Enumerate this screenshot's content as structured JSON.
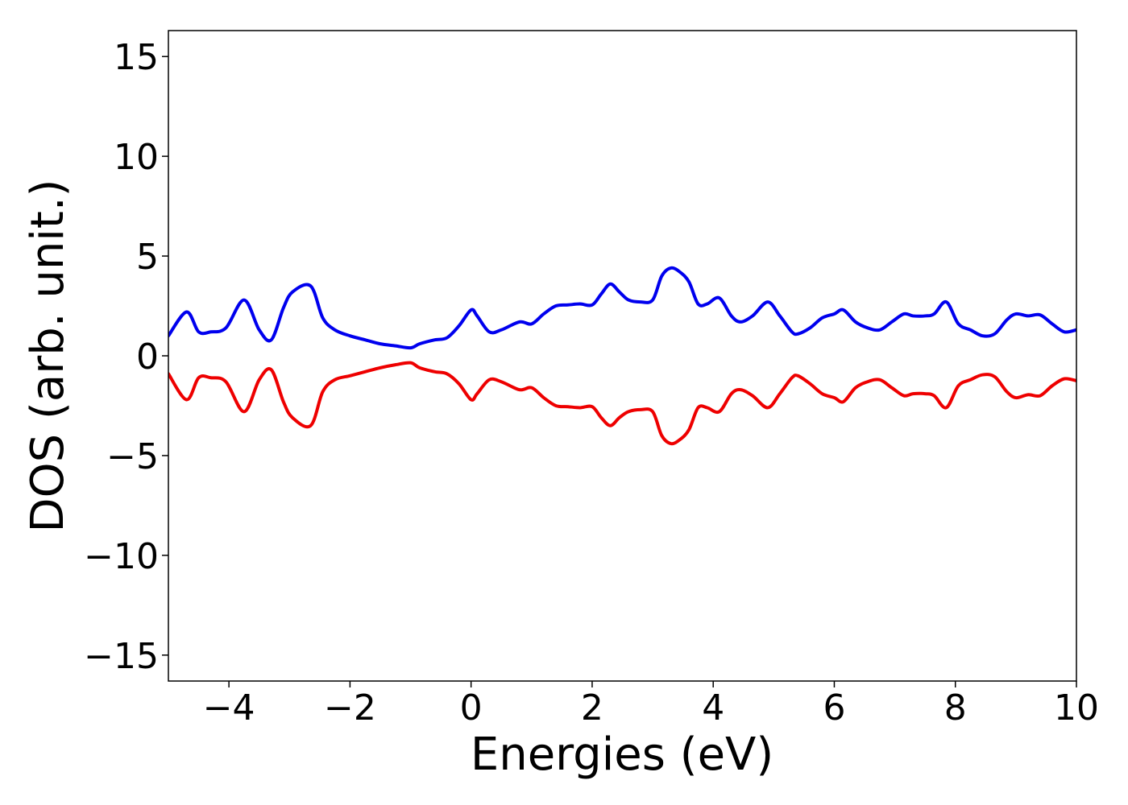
{
  "chart_data": {
    "type": "line",
    "title": "",
    "xlabel": "Energies (eV)",
    "ylabel": "DOS (arb. unit.)",
    "xlim": [
      -5,
      10
    ],
    "ylim": [
      -16.3,
      16.3
    ],
    "xticks": [
      -4,
      -2,
      0,
      2,
      4,
      6,
      8,
      10
    ],
    "xtick_labels": [
      "−4",
      "−2",
      "0",
      "2",
      "4",
      "6",
      "8",
      "10"
    ],
    "yticks": [
      -15,
      -10,
      -5,
      0,
      5,
      10,
      15
    ],
    "ytick_labels": [
      "−15",
      "−10",
      "−5",
      "0",
      "5",
      "10",
      "15"
    ],
    "grid": false,
    "legend": "none",
    "series": [
      {
        "color": "#0000ee",
        "x": [
          -5.0,
          -4.7,
          -4.5,
          -4.3,
          -4.05,
          -3.75,
          -3.5,
          -3.3,
          -3.1,
          -2.95,
          -2.65,
          -2.45,
          -2.25,
          -2.0,
          -1.75,
          -1.5,
          -1.25,
          -1.0,
          -0.85,
          -0.6,
          -0.4,
          -0.2,
          0.0,
          0.1,
          0.3,
          0.5,
          0.8,
          1.0,
          1.2,
          1.4,
          1.6,
          1.8,
          2.0,
          2.15,
          2.3,
          2.45,
          2.6,
          2.8,
          3.0,
          3.15,
          3.3,
          3.45,
          3.6,
          3.75,
          3.9,
          4.1,
          4.3,
          4.45,
          4.65,
          4.9,
          5.1,
          5.3,
          5.4,
          5.6,
          5.8,
          6.0,
          6.15,
          6.35,
          6.55,
          6.75,
          6.95,
          7.15,
          7.3,
          7.5,
          7.65,
          7.85,
          8.05,
          8.25,
          8.45,
          8.65,
          8.85,
          9.0,
          9.2,
          9.4,
          9.6,
          9.8,
          10.0
        ],
        "y": [
          1.0,
          2.2,
          1.2,
          1.2,
          1.4,
          2.8,
          1.3,
          0.8,
          2.4,
          3.2,
          3.5,
          1.9,
          1.3,
          1.0,
          0.8,
          0.6,
          0.5,
          0.4,
          0.6,
          0.8,
          0.9,
          1.5,
          2.3,
          2.0,
          1.2,
          1.3,
          1.7,
          1.6,
          2.1,
          2.5,
          2.55,
          2.6,
          2.55,
          3.1,
          3.6,
          3.2,
          2.8,
          2.7,
          2.8,
          4.0,
          4.4,
          4.2,
          3.7,
          2.6,
          2.6,
          2.9,
          2.0,
          1.7,
          2.0,
          2.7,
          2.0,
          1.2,
          1.1,
          1.4,
          1.9,
          2.1,
          2.3,
          1.7,
          1.4,
          1.3,
          1.7,
          2.1,
          2.0,
          2.0,
          2.1,
          2.7,
          1.6,
          1.3,
          1.0,
          1.1,
          1.8,
          2.1,
          2.0,
          2.05,
          1.6,
          1.2,
          1.3
        ]
      },
      {
        "color": "#ee0000",
        "x": [
          -5.0,
          -4.7,
          -4.5,
          -4.3,
          -4.05,
          -3.75,
          -3.5,
          -3.3,
          -3.1,
          -2.95,
          -2.65,
          -2.45,
          -2.25,
          -2.0,
          -1.75,
          -1.5,
          -1.25,
          -1.0,
          -0.85,
          -0.6,
          -0.4,
          -0.2,
          0.0,
          0.1,
          0.3,
          0.5,
          0.8,
          1.0,
          1.2,
          1.4,
          1.6,
          1.8,
          2.0,
          2.15,
          2.3,
          2.45,
          2.6,
          2.8,
          3.0,
          3.15,
          3.3,
          3.45,
          3.6,
          3.75,
          3.9,
          4.1,
          4.3,
          4.45,
          4.65,
          4.9,
          5.1,
          5.3,
          5.4,
          5.6,
          5.8,
          6.0,
          6.15,
          6.35,
          6.55,
          6.75,
          6.95,
          7.15,
          7.3,
          7.5,
          7.65,
          7.85,
          8.05,
          8.25,
          8.45,
          8.65,
          8.85,
          9.0,
          9.2,
          9.4,
          9.6,
          9.8,
          10.0
        ],
        "y": [
          -0.9,
          -2.2,
          -1.1,
          -1.1,
          -1.3,
          -2.8,
          -1.2,
          -0.7,
          -2.3,
          -3.1,
          -3.5,
          -1.8,
          -1.2,
          -1.0,
          -0.8,
          -0.6,
          -0.45,
          -0.35,
          -0.6,
          -0.8,
          -0.9,
          -1.4,
          -2.2,
          -1.9,
          -1.2,
          -1.3,
          -1.7,
          -1.6,
          -2.1,
          -2.5,
          -2.55,
          -2.6,
          -2.55,
          -3.1,
          -3.5,
          -3.1,
          -2.8,
          -2.7,
          -2.8,
          -4.0,
          -4.4,
          -4.2,
          -3.7,
          -2.6,
          -2.6,
          -2.8,
          -1.9,
          -1.7,
          -2.0,
          -2.6,
          -1.9,
          -1.1,
          -1.0,
          -1.4,
          -1.9,
          -2.1,
          -2.3,
          -1.6,
          -1.3,
          -1.2,
          -1.6,
          -2.0,
          -1.9,
          -1.9,
          -2.0,
          -2.6,
          -1.5,
          -1.2,
          -0.95,
          -1.05,
          -1.8,
          -2.1,
          -1.95,
          -2.0,
          -1.5,
          -1.15,
          -1.25
        ]
      }
    ]
  }
}
